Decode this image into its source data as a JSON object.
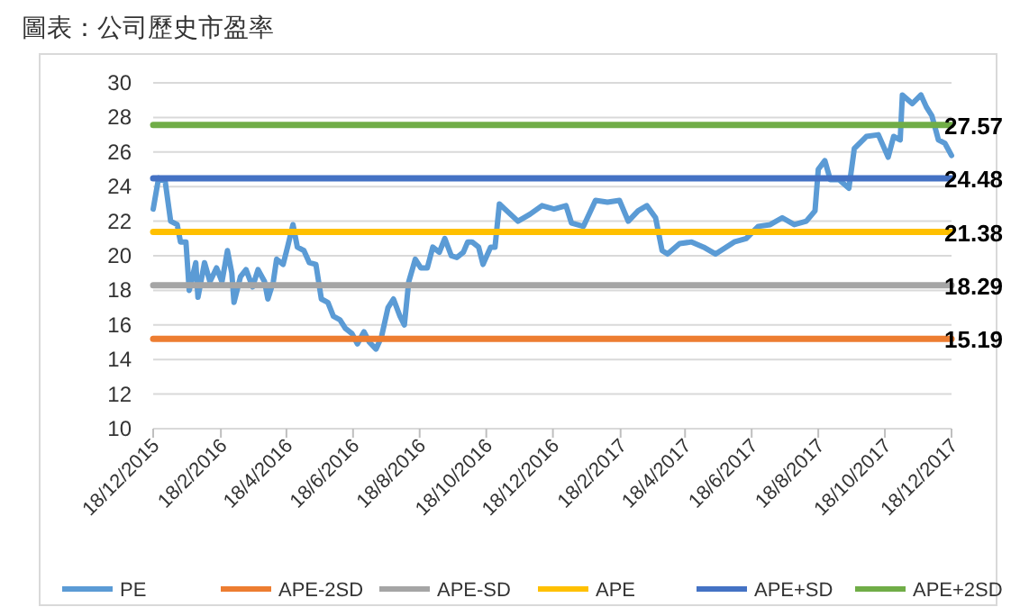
{
  "chart_data": {
    "type": "line",
    "title": "圖表：公司歷史市盈率",
    "xlim": [
      "2015-12-18",
      "2017-12-18"
    ],
    "xticks": [
      {
        "value": "2015-12-18",
        "label": "18/12/2015"
      },
      {
        "value": "2016-02-18",
        "label": "18/2/2016"
      },
      {
        "value": "2016-04-18",
        "label": "18/4/2016"
      },
      {
        "value": "2016-06-18",
        "label": "18/6/2016"
      },
      {
        "value": "2016-08-18",
        "label": "18/8/2016"
      },
      {
        "value": "2016-10-18",
        "label": "18/10/2016"
      },
      {
        "value": "2016-12-18",
        "label": "18/12/2016"
      },
      {
        "value": "2017-02-18",
        "label": "18/2/2017"
      },
      {
        "value": "2017-04-18",
        "label": "18/4/2017"
      },
      {
        "value": "2017-06-18",
        "label": "18/6/2017"
      },
      {
        "value": "2017-08-18",
        "label": "18/8/2017"
      },
      {
        "value": "2017-10-18",
        "label": "18/10/2017"
      },
      {
        "value": "2017-12-18",
        "label": "18/12/2017"
      }
    ],
    "ylim": [
      10,
      30
    ],
    "yticks": [
      10,
      12,
      14,
      16,
      18,
      20,
      22,
      24,
      26,
      28,
      30
    ],
    "grid": "y",
    "legend": "bottom",
    "marker": "none",
    "line_style": "solid",
    "series": [
      {
        "name": "PE",
        "color": "#5b9bd5",
        "x": [
          "2015-12-18",
          "2015-12-23",
          "2015-12-29",
          "2016-01-03",
          "2016-01-09",
          "2016-01-12",
          "2016-01-17",
          "2016-01-20",
          "2016-01-26",
          "2016-01-28",
          "2016-02-03",
          "2016-02-08",
          "2016-02-14",
          "2016-02-19",
          "2016-02-24",
          "2016-02-28",
          "2016-03-01",
          "2016-03-07",
          "2016-03-12",
          "2016-03-18",
          "2016-03-23",
          "2016-03-29",
          "2016-04-01",
          "2016-04-06",
          "2016-04-09",
          "2016-04-15",
          "2016-04-19",
          "2016-04-24",
          "2016-04-28",
          "2016-05-04",
          "2016-05-09",
          "2016-05-15",
          "2016-05-20",
          "2016-05-26",
          "2016-05-31",
          "2016-06-06",
          "2016-06-11",
          "2016-06-17",
          "2016-06-22",
          "2016-06-28",
          "2016-07-03",
          "2016-07-09",
          "2016-07-14",
          "2016-07-20",
          "2016-07-25",
          "2016-07-31",
          "2016-08-04",
          "2016-08-08",
          "2016-08-14",
          "2016-08-19",
          "2016-08-25",
          "2016-08-30",
          "2016-09-05",
          "2016-09-10",
          "2016-09-16",
          "2016-09-21",
          "2016-09-27",
          "2016-10-01",
          "2016-10-05",
          "2016-10-11",
          "2016-10-15",
          "2016-10-22",
          "2016-10-26",
          "2016-10-30",
          "2016-11-04",
          "2016-11-16",
          "2016-11-27",
          "2016-12-08",
          "2016-12-19",
          "2016-12-30",
          "2017-01-04",
          "2017-01-15",
          "2017-01-26",
          "2017-02-06",
          "2017-02-17",
          "2017-02-25",
          "2017-03-06",
          "2017-03-14",
          "2017-03-22",
          "2017-03-28",
          "2017-04-02",
          "2017-04-13",
          "2017-04-24",
          "2017-05-05",
          "2017-05-16",
          "2017-06-02",
          "2017-06-13",
          "2017-06-24",
          "2017-07-05",
          "2017-07-16",
          "2017-07-27",
          "2017-08-07",
          "2017-08-15",
          "2017-08-18",
          "2017-08-24",
          "2017-08-29",
          "2017-09-06",
          "2017-09-15",
          "2017-09-20",
          "2017-10-01",
          "2017-10-12",
          "2017-10-21",
          "2017-10-26",
          "2017-11-01",
          "2017-11-03",
          "2017-11-12",
          "2017-11-20",
          "2017-11-25",
          "2017-11-30",
          "2017-12-06",
          "2017-12-12",
          "2017-12-18"
        ],
        "values": [
          22.7,
          24.5,
          24.3,
          22,
          21.8,
          20.8,
          20.8,
          18,
          19.6,
          17.6,
          19.6,
          18.5,
          19.3,
          18.5,
          20.3,
          19,
          17.3,
          18.8,
          19.2,
          18.2,
          19.2,
          18.5,
          17.5,
          18.5,
          19.8,
          19.5,
          20.5,
          21.8,
          20.5,
          20.3,
          19.6,
          19.5,
          17.5,
          17.3,
          16.5,
          16.3,
          15.8,
          15.5,
          14.9,
          15.6,
          15,
          14.6,
          15.3,
          17,
          17.5,
          16.5,
          16,
          18.5,
          19.8,
          19.3,
          19.3,
          20.5,
          20.2,
          21,
          20,
          19.9,
          20.2,
          20.8,
          20.8,
          20.5,
          19.5,
          20.5,
          20.5,
          23,
          22.7,
          22,
          22.4,
          22.9,
          22.7,
          22.9,
          21.9,
          21.7,
          23.2,
          23.1,
          23.2,
          22,
          22.6,
          22.9,
          22.2,
          20.3,
          20.1,
          20.7,
          20.8,
          20.5,
          20.1,
          20.8,
          21,
          21.7,
          21.8,
          22.2,
          21.8,
          22,
          22.6,
          25,
          25.5,
          24.4,
          24.4,
          23.9,
          26.2,
          26.9,
          27,
          25.7,
          26.9,
          26.7,
          29.3,
          28.8,
          29.3,
          28.6,
          28.1,
          26.7,
          26.5,
          25.8
        ]
      },
      {
        "name": "APE-2SD",
        "color": "#ed7d31",
        "x": [
          "2015-12-18",
          "2017-12-18"
        ],
        "values": [
          15.19,
          15.19
        ],
        "value_labels": [
          null,
          "15.19"
        ]
      },
      {
        "name": "APE-SD",
        "color": "#a5a5a5",
        "x": [
          "2015-12-18",
          "2017-12-18"
        ],
        "values": [
          18.29,
          18.29
        ],
        "value_labels": [
          null,
          "18.29"
        ]
      },
      {
        "name": "APE",
        "color": "#ffc000",
        "x": [
          "2015-12-18",
          "2017-12-18"
        ],
        "values": [
          21.38,
          21.38
        ],
        "value_labels": [
          null,
          "21.38"
        ]
      },
      {
        "name": "APE+SD",
        "color": "#4472c4",
        "x": [
          "2015-12-18",
          "2017-12-18"
        ],
        "values": [
          24.48,
          24.48
        ],
        "value_labels": [
          null,
          "24.48"
        ]
      },
      {
        "name": "APE+2SD",
        "color": "#70ad47",
        "x": [
          "2015-12-18",
          "2017-12-18"
        ],
        "values": [
          27.57,
          27.57
        ],
        "value_labels": [
          null,
          "27.57"
        ]
      }
    ]
  }
}
